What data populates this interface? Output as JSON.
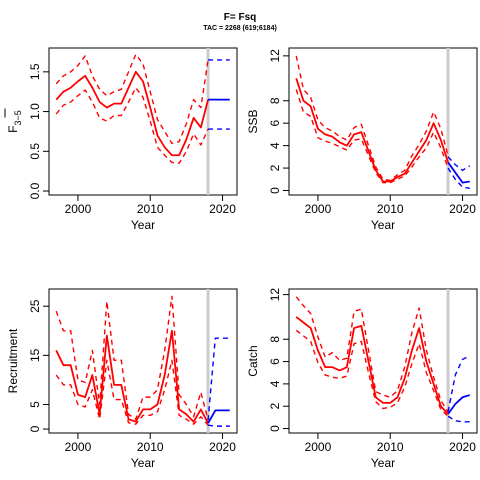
{
  "figure": {
    "title": "F= Fsq",
    "subtitle": "TAC = 2268 (619;6184)"
  },
  "chart_data": [
    {
      "type": "line",
      "ylabel": "F-bar 3-5",
      "ylabel_main": "F",
      "ylabel_sub": "3−5",
      "xlabel": "Year",
      "xlim": [
        1996,
        2022
      ],
      "ylim": [
        -0.05,
        1.8
      ],
      "xticks": [
        2000,
        2010,
        2020
      ],
      "yticks": [
        0.0,
        0.5,
        1.0,
        1.5
      ],
      "ytick_labels": [
        "0.0",
        "0.5",
        "1.0",
        "1.5"
      ],
      "vline_x": 2018,
      "years": [
        1997,
        1998,
        1999,
        2000,
        2001,
        2002,
        2003,
        2004,
        2005,
        2006,
        2007,
        2008,
        2009,
        2010,
        2011,
        2012,
        2013,
        2014,
        2015,
        2016,
        2017,
        2018
      ],
      "series": [
        {
          "color": "#ff0000",
          "style": "solid",
          "values": [
            1.15,
            1.25,
            1.3,
            1.38,
            1.45,
            1.3,
            1.12,
            1.05,
            1.1,
            1.1,
            1.3,
            1.5,
            1.38,
            1.05,
            0.7,
            0.55,
            0.45,
            0.45,
            0.65,
            0.92,
            0.8,
            1.15
          ]
        },
        {
          "color": "#ff0000",
          "style": "dashed",
          "values": [
            1.35,
            1.45,
            1.5,
            1.58,
            1.7,
            1.45,
            1.28,
            1.2,
            1.25,
            1.28,
            1.5,
            1.72,
            1.6,
            1.25,
            0.9,
            0.75,
            0.6,
            0.62,
            0.85,
            1.15,
            1.05,
            1.65
          ]
        },
        {
          "color": "#ff0000",
          "style": "dashed",
          "values": [
            0.97,
            1.08,
            1.12,
            1.2,
            1.27,
            1.12,
            0.92,
            0.88,
            0.95,
            0.95,
            1.12,
            1.3,
            1.18,
            0.88,
            0.55,
            0.45,
            0.36,
            0.35,
            0.5,
            0.72,
            0.58,
            0.78
          ]
        },
        {
          "color": "#0000ff",
          "style": "solid",
          "x": [
            2018,
            2019,
            2020,
            2021
          ],
          "values": [
            1.15,
            1.15,
            1.15,
            1.15
          ]
        },
        {
          "color": "#0000ff",
          "style": "dashed",
          "x": [
            2018,
            2019,
            2020,
            2021
          ],
          "values": [
            1.65,
            1.65,
            1.65,
            1.65
          ]
        },
        {
          "color": "#0000ff",
          "style": "dashed",
          "x": [
            2018,
            2019,
            2020,
            2021
          ],
          "values": [
            0.78,
            0.78,
            0.78,
            0.78
          ]
        }
      ]
    },
    {
      "type": "line",
      "ylabel": "SSB",
      "xlabel": "Year",
      "xlim": [
        1996,
        2022
      ],
      "ylim": [
        -0.4,
        12.7
      ],
      "xticks": [
        2000,
        2010,
        2020
      ],
      "yticks": [
        0,
        2,
        4,
        6,
        8,
        12
      ],
      "ytick_labels": [
        "0",
        "2",
        "4",
        "6",
        "8",
        "12"
      ],
      "vline_x": 2018,
      "years": [
        1997,
        1998,
        1999,
        2000,
        2001,
        2002,
        2003,
        2004,
        2005,
        2006,
        2007,
        2008,
        2009,
        2010,
        2011,
        2012,
        2013,
        2014,
        2015,
        2016,
        2017,
        2018
      ],
      "series": [
        {
          "color": "#ff0000",
          "style": "solid",
          "values": [
            10.0,
            8.0,
            7.5,
            5.5,
            5.0,
            4.8,
            4.3,
            4.0,
            5.0,
            5.2,
            3.5,
            1.8,
            0.8,
            0.8,
            1.2,
            1.5,
            2.5,
            3.5,
            4.5,
            6.0,
            4.5,
            2.5
          ]
        },
        {
          "color": "#ff0000",
          "style": "dashed",
          "values": [
            12.0,
            9.0,
            8.3,
            6.3,
            5.6,
            5.3,
            4.8,
            4.5,
            5.6,
            5.9,
            4.0,
            2.1,
            1.0,
            0.9,
            1.4,
            1.8,
            3.1,
            4.1,
            5.3,
            7.0,
            5.5,
            3.1
          ]
        },
        {
          "color": "#ff0000",
          "style": "dashed",
          "values": [
            9.0,
            7.0,
            6.6,
            4.7,
            4.4,
            4.2,
            3.9,
            3.6,
            4.5,
            4.6,
            3.1,
            1.6,
            0.7,
            0.7,
            1.0,
            1.3,
            2.1,
            3.0,
            3.8,
            5.2,
            3.8,
            2.0
          ]
        },
        {
          "color": "#0000ff",
          "style": "solid",
          "x": [
            2018,
            2019,
            2020,
            2021
          ],
          "values": [
            2.5,
            1.6,
            0.7,
            0.8
          ]
        },
        {
          "color": "#0000ff",
          "style": "dashed",
          "x": [
            2018,
            2019,
            2020,
            2021
          ],
          "values": [
            3.0,
            2.3,
            1.8,
            2.2
          ]
        },
        {
          "color": "#0000ff",
          "style": "dashed",
          "x": [
            2018,
            2019,
            2020,
            2021
          ],
          "values": [
            2.0,
            1.0,
            0.3,
            0.2
          ]
        }
      ]
    },
    {
      "type": "line",
      "ylabel": "Recruitment",
      "xlabel": "Year",
      "xlim": [
        1996,
        2022
      ],
      "ylim": [
        -0.8,
        28.5
      ],
      "xticks": [
        2000,
        2010,
        2020
      ],
      "yticks": [
        0,
        5,
        15,
        25
      ],
      "ytick_labels": [
        "0",
        "5",
        "15",
        "25"
      ],
      "vline_x": 2018,
      "years": [
        1997,
        1998,
        1999,
        2000,
        2001,
        2002,
        2003,
        2004,
        2005,
        2006,
        2007,
        2008,
        2009,
        2010,
        2011,
        2012,
        2013,
        2014,
        2015,
        2016,
        2017,
        2018
      ],
      "series": [
        {
          "color": "#ff0000",
          "style": "solid",
          "values": [
            16.0,
            13.0,
            13.0,
            7.0,
            6.5,
            11.0,
            3.0,
            19.0,
            9.0,
            9.0,
            2.0,
            1.5,
            4.0,
            4.0,
            5.0,
            11.0,
            20.0,
            4.0,
            3.0,
            1.5,
            4.0,
            1.2
          ]
        },
        {
          "color": "#ff0000",
          "style": "dashed",
          "values": [
            24.0,
            20.0,
            20.0,
            10.0,
            9.5,
            16.0,
            5.0,
            26.0,
            14.0,
            14.0,
            3.0,
            2.0,
            6.5,
            6.5,
            8.0,
            16.0,
            27.0,
            7.0,
            5.0,
            2.5,
            7.5,
            1.8
          ]
        },
        {
          "color": "#ff0000",
          "style": "dashed",
          "values": [
            11.0,
            9.0,
            9.0,
            5.0,
            4.5,
            8.0,
            2.0,
            14.0,
            6.0,
            6.0,
            1.3,
            1.0,
            2.8,
            2.8,
            3.5,
            8.0,
            14.0,
            2.8,
            2.0,
            1.0,
            2.5,
            0.8
          ]
        },
        {
          "color": "#0000ff",
          "style": "solid",
          "x": [
            2018,
            2019,
            2020,
            2021
          ],
          "values": [
            1.2,
            3.8,
            3.8,
            3.8
          ]
        },
        {
          "color": "#0000ff",
          "style": "dashed",
          "x": [
            2018,
            2019,
            2020,
            2021
          ],
          "values": [
            1.8,
            18.5,
            18.5,
            18.5
          ]
        },
        {
          "color": "#0000ff",
          "style": "dashed",
          "x": [
            2018,
            2019,
            2020,
            2021
          ],
          "values": [
            0.8,
            0.6,
            0.6,
            0.6
          ]
        }
      ]
    },
    {
      "type": "line",
      "ylabel": "Catch",
      "xlabel": "Year",
      "xlim": [
        1996,
        2022
      ],
      "ylim": [
        -0.4,
        12.5
      ],
      "xticks": [
        2000,
        2010,
        2020
      ],
      "yticks": [
        0,
        2,
        4,
        6,
        8,
        12
      ],
      "ytick_labels": [
        "0",
        "2",
        "4",
        "6",
        "8",
        "12"
      ],
      "vline_x": 2018,
      "years": [
        1997,
        1998,
        1999,
        2000,
        2001,
        2002,
        2003,
        2004,
        2005,
        2006,
        2007,
        2008,
        2009,
        2010,
        2011,
        2012,
        2013,
        2014,
        2015,
        2016,
        2017,
        2018
      ],
      "series": [
        {
          "color": "#ff0000",
          "style": "solid",
          "values": [
            10.0,
            9.5,
            9.0,
            7.0,
            5.5,
            5.5,
            5.2,
            5.5,
            9.0,
            9.2,
            6.0,
            2.8,
            2.3,
            2.3,
            2.8,
            4.5,
            7.0,
            9.0,
            6.0,
            4.0,
            2.0,
            1.3
          ]
        },
        {
          "color": "#ff0000",
          "style": "dashed",
          "values": [
            11.8,
            11.0,
            10.3,
            8.2,
            6.4,
            6.8,
            6.1,
            6.3,
            10.5,
            10.7,
            7.0,
            3.3,
            3.0,
            2.8,
            3.4,
            5.5,
            8.6,
            10.8,
            7.0,
            4.6,
            2.5,
            1.5
          ]
        },
        {
          "color": "#ff0000",
          "style": "dashed",
          "values": [
            8.8,
            8.3,
            7.8,
            5.9,
            4.8,
            4.6,
            4.5,
            4.7,
            7.6,
            7.8,
            5.0,
            2.4,
            1.8,
            1.9,
            2.3,
            3.7,
            5.8,
            7.6,
            5.0,
            3.4,
            1.7,
            1.1
          ]
        },
        {
          "color": "#0000ff",
          "style": "solid",
          "x": [
            2018,
            2019,
            2020,
            2021
          ],
          "values": [
            1.3,
            2.2,
            2.8,
            3.0
          ]
        },
        {
          "color": "#0000ff",
          "style": "dashed",
          "x": [
            2018,
            2019,
            2020,
            2021
          ],
          "values": [
            1.5,
            4.8,
            6.2,
            6.5
          ]
        },
        {
          "color": "#0000ff",
          "style": "dashed",
          "x": [
            2018,
            2019,
            2020,
            2021
          ],
          "values": [
            1.1,
            0.7,
            0.6,
            0.6
          ]
        }
      ]
    }
  ]
}
